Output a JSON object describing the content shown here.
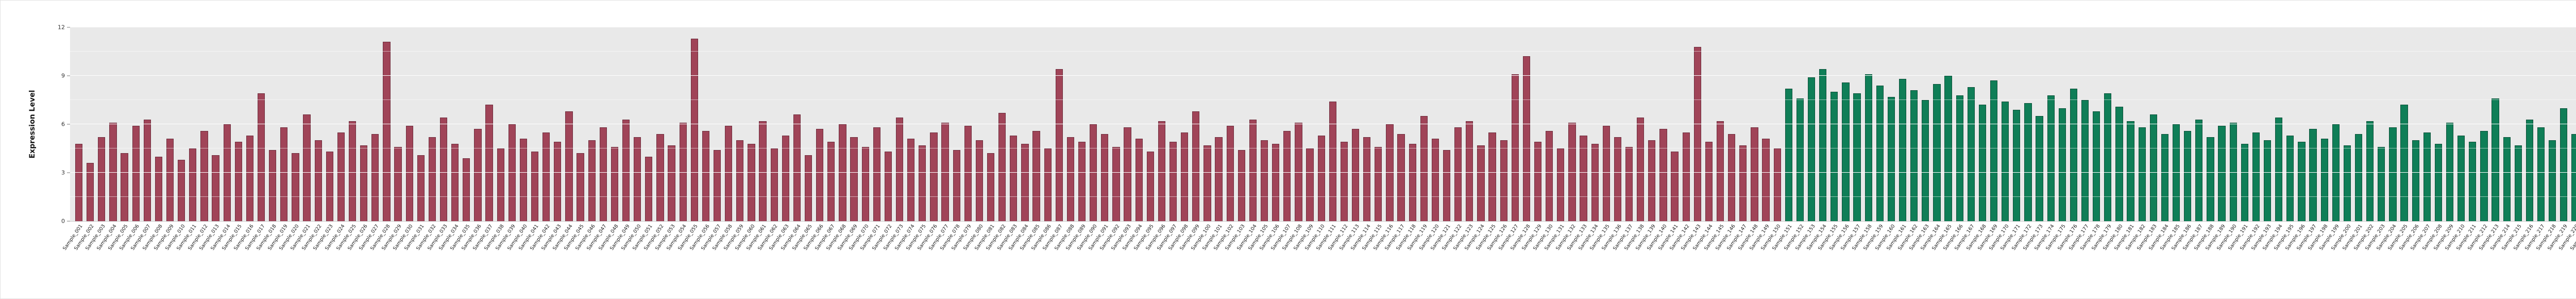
{
  "chart_data": {
    "type": "bar",
    "title": "",
    "xlabel": "",
    "ylabel": "Expression Level",
    "ylim": [
      0,
      12
    ],
    "yticks": [
      0,
      3,
      6,
      9,
      12
    ],
    "yticks_minor": [
      1.5,
      4.5,
      7.5,
      10.5
    ],
    "grid": true,
    "legend": "none",
    "plot_background": "#e9e9e9",
    "grid_color": "#ffffff",
    "groups": [
      {
        "name": "red-group",
        "color": "#a04458",
        "edge": "#6e2c3c",
        "labels": [
          "Sample_001",
          "Sample_002",
          "Sample_003",
          "Sample_004",
          "Sample_005",
          "Sample_006",
          "Sample_007",
          "Sample_008",
          "Sample_009",
          "Sample_010",
          "Sample_011",
          "Sample_012",
          "Sample_013",
          "Sample_014",
          "Sample_015",
          "Sample_016",
          "Sample_017",
          "Sample_018",
          "Sample_019",
          "Sample_020",
          "Sample_021",
          "Sample_022",
          "Sample_023",
          "Sample_024",
          "Sample_025",
          "Sample_026",
          "Sample_027",
          "Sample_028",
          "Sample_029",
          "Sample_030",
          "Sample_031",
          "Sample_032",
          "Sample_033",
          "Sample_034",
          "Sample_035",
          "Sample_036",
          "Sample_037",
          "Sample_038",
          "Sample_039",
          "Sample_040",
          "Sample_041",
          "Sample_042",
          "Sample_043",
          "Sample_044",
          "Sample_045",
          "Sample_046",
          "Sample_047",
          "Sample_048",
          "Sample_049",
          "Sample_050",
          "Sample_051",
          "Sample_052",
          "Sample_053",
          "Sample_054",
          "Sample_055",
          "Sample_056",
          "Sample_057",
          "Sample_058",
          "Sample_059",
          "Sample_060",
          "Sample_061",
          "Sample_062",
          "Sample_063",
          "Sample_064",
          "Sample_065",
          "Sample_066",
          "Sample_067",
          "Sample_068",
          "Sample_069",
          "Sample_070",
          "Sample_071",
          "Sample_072",
          "Sample_073",
          "Sample_074",
          "Sample_075",
          "Sample_076",
          "Sample_077",
          "Sample_078",
          "Sample_079",
          "Sample_080",
          "Sample_081",
          "Sample_082",
          "Sample_083",
          "Sample_084",
          "Sample_085",
          "Sample_086",
          "Sample_087",
          "Sample_088",
          "Sample_089",
          "Sample_090",
          "Sample_091",
          "Sample_092",
          "Sample_093",
          "Sample_094",
          "Sample_095",
          "Sample_096",
          "Sample_097",
          "Sample_098",
          "Sample_099",
          "Sample_100",
          "Sample_101",
          "Sample_102",
          "Sample_103",
          "Sample_104",
          "Sample_105",
          "Sample_106",
          "Sample_107",
          "Sample_108",
          "Sample_109",
          "Sample_110",
          "Sample_111",
          "Sample_112",
          "Sample_113",
          "Sample_114",
          "Sample_115",
          "Sample_116",
          "Sample_117",
          "Sample_118",
          "Sample_119",
          "Sample_120",
          "Sample_121",
          "Sample_122",
          "Sample_123",
          "Sample_124",
          "Sample_125",
          "Sample_126",
          "Sample_127",
          "Sample_128",
          "Sample_129",
          "Sample_130",
          "Sample_131",
          "Sample_132",
          "Sample_133",
          "Sample_134",
          "Sample_135",
          "Sample_136",
          "Sample_137",
          "Sample_138",
          "Sample_139",
          "Sample_140",
          "Sample_141",
          "Sample_142",
          "Sample_143",
          "Sample_144",
          "Sample_145",
          "Sample_146",
          "Sample_147",
          "Sample_148",
          "Sample_149",
          "Sample_150"
        ],
        "values": [
          4.8,
          3.6,
          5.2,
          6.1,
          4.2,
          5.9,
          6.3,
          4.0,
          5.1,
          3.8,
          4.5,
          5.6,
          4.1,
          6.0,
          4.9,
          5.3,
          7.9,
          4.4,
          5.8,
          4.2,
          6.6,
          5.0,
          4.3,
          5.5,
          6.2,
          4.7,
          5.4,
          11.1,
          4.6,
          5.9,
          4.1,
          5.2,
          6.4,
          4.8,
          3.9,
          5.7,
          7.2,
          4.5,
          6.0,
          5.1,
          4.3,
          5.5,
          4.9,
          6.8,
          4.2,
          5.0,
          5.8,
          4.6,
          6.3,
          5.2,
          4.0,
          5.4,
          4.7,
          6.1,
          11.3,
          5.6,
          4.4,
          5.9,
          5.0,
          4.8,
          6.2,
          4.5,
          5.3,
          6.6,
          4.1,
          5.7,
          4.9,
          6.0,
          5.2,
          4.6,
          5.8,
          4.3,
          6.4,
          5.1,
          4.7,
          5.5,
          6.1,
          4.4,
          5.9,
          5.0,
          4.2,
          6.7,
          5.3,
          4.8,
          5.6,
          4.5,
          9.4,
          5.2,
          4.9,
          6.0,
          5.4,
          4.6,
          5.8,
          5.1,
          4.3,
          6.2,
          4.9,
          5.5,
          6.8,
          4.7,
          5.2,
          5.9,
          4.4,
          6.3,
          5.0,
          4.8,
          5.6,
          6.1,
          4.5,
          5.3,
          7.4,
          4.9,
          5.7,
          5.2,
          4.6,
          6.0,
          5.4,
          4.8,
          6.5,
          5.1,
          4.4,
          5.8,
          6.2,
          4.7,
          5.5,
          5.0,
          9.1,
          10.2,
          4.9,
          5.6,
          4.5,
          6.1,
          5.3,
          4.8,
          5.9,
          5.2,
          4.6,
          6.4,
          5.0,
          5.7,
          4.3,
          5.5,
          10.8,
          4.9,
          6.2,
          5.4,
          4.7,
          5.8,
          5.1,
          4.5
        ]
      },
      {
        "name": "green-group",
        "color": "#0f7e57",
        "edge": "#0a5038",
        "labels": [
          "Sample_151",
          "Sample_152",
          "Sample_153",
          "Sample_154",
          "Sample_155",
          "Sample_156",
          "Sample_157",
          "Sample_158",
          "Sample_159",
          "Sample_160",
          "Sample_161",
          "Sample_162",
          "Sample_163",
          "Sample_164",
          "Sample_165",
          "Sample_166",
          "Sample_167",
          "Sample_168",
          "Sample_169",
          "Sample_170",
          "Sample_171",
          "Sample_172",
          "Sample_173",
          "Sample_174",
          "Sample_175",
          "Sample_176",
          "Sample_177",
          "Sample_178",
          "Sample_179",
          "Sample_180",
          "Sample_181",
          "Sample_182",
          "Sample_183",
          "Sample_184",
          "Sample_185",
          "Sample_186",
          "Sample_187",
          "Sample_188",
          "Sample_189",
          "Sample_190",
          "Sample_191",
          "Sample_192",
          "Sample_193",
          "Sample_194",
          "Sample_195",
          "Sample_196",
          "Sample_197",
          "Sample_198",
          "Sample_199",
          "Sample_200",
          "Sample_201",
          "Sample_202",
          "Sample_203",
          "Sample_204",
          "Sample_205",
          "Sample_206",
          "Sample_207",
          "Sample_208",
          "Sample_209",
          "Sample_210",
          "Sample_211",
          "Sample_212",
          "Sample_213",
          "Sample_214",
          "Sample_215",
          "Sample_216",
          "Sample_217",
          "Sample_218",
          "Sample_219",
          "Sample_220",
          "Sample_221",
          "Sample_222",
          "Sample_223",
          "Sample_224",
          "Sample_225",
          "Sample_226",
          "Sample_227",
          "Sample_228"
        ],
        "values": [
          8.2,
          7.6,
          8.9,
          9.4,
          8.0,
          8.6,
          7.9,
          9.1,
          8.4,
          7.7,
          8.8,
          8.1,
          7.5,
          8.5,
          9.0,
          7.8,
          8.3,
          7.2,
          8.7,
          7.4,
          6.9,
          7.3,
          6.5,
          7.8,
          7.0,
          8.2,
          7.5,
          6.8,
          7.9,
          7.1,
          6.2,
          5.8,
          6.6,
          5.4,
          6.0,
          5.6,
          6.3,
          5.2,
          5.9,
          6.1,
          4.8,
          5.5,
          5.0,
          6.4,
          5.3,
          4.9,
          5.7,
          5.1,
          6.0,
          4.7,
          5.4,
          6.2,
          4.6,
          5.8,
          7.2,
          5.0,
          5.5,
          4.8,
          6.1,
          5.3,
          4.9,
          5.6,
          7.6,
          5.2,
          4.7,
          6.3,
          5.8,
          5.0,
          7.0,
          5.4,
          6.6,
          5.1,
          4.8,
          5.7,
          6.0,
          5.3,
          4.9,
          7.3
        ]
      }
    ]
  }
}
